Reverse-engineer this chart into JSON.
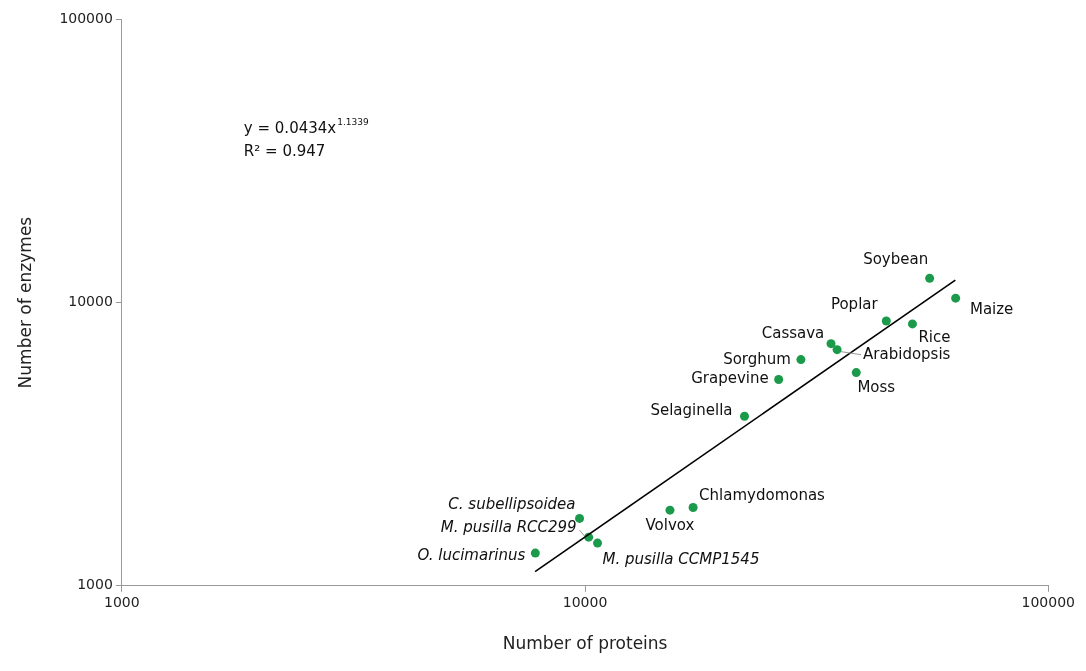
{
  "chart_data": {
    "type": "scatter",
    "xlabel": "Number of proteins",
    "ylabel": "Number of enzymes",
    "log": "xy",
    "grid": false,
    "legend": false,
    "marker": "circle",
    "xlim": [
      1000,
      100000
    ],
    "xticks": [
      1000,
      10000,
      100000
    ],
    "ylim": [
      1000,
      100000
    ],
    "yticks": [
      1000,
      10000,
      100000
    ],
    "series": [
      {
        "color": "#1a9a4a",
        "x": [
          55450,
          63100,
          44700,
          50900,
          33960,
          35000,
          29240,
          26180,
          38500,
          22090,
          17110,
          15250,
          9730,
          10180,
          10640,
          7810
        ],
        "values": [
          12180,
          10370,
          8610,
          8410,
          7160,
          6820,
          6290,
          5350,
          5660,
          3970,
          1890,
          1850,
          1730,
          1485,
          1415,
          1305
        ]
      },
      {
        "type": "line",
        "color": "#000000",
        "line_style": "solid",
        "marker": "none",
        "x": [
          7800,
          63000
        ],
        "values": [
          1122,
          12000
        ]
      }
    ],
    "annotations": [
      {
        "text": "Soybean",
        "x": 55450,
        "y": 12180
      },
      {
        "text": "Maize",
        "x": 63100,
        "y": 10370
      },
      {
        "text": "Poplar",
        "x": 44700,
        "y": 8610
      },
      {
        "text": "Rice",
        "x": 50900,
        "y": 8410
      },
      {
        "text": "Cassava",
        "x": 33960,
        "y": 7160
      },
      {
        "text": "Arabidopsis",
        "x": 35000,
        "y": 6820
      },
      {
        "text": "Sorghum",
        "x": 29240,
        "y": 6290
      },
      {
        "text": "Grapevine",
        "x": 26180,
        "y": 5350
      },
      {
        "text": "Moss",
        "x": 38500,
        "y": 5660
      },
      {
        "text": "Selaginella",
        "x": 22090,
        "y": 3970
      },
      {
        "text": "Chlamydomonas",
        "x": 17110,
        "y": 1890
      },
      {
        "text": "Volvox",
        "x": 15250,
        "y": 1850
      },
      {
        "text": "C. subellipsoidea",
        "x": 9730,
        "y": 1730
      },
      {
        "text": "M. pusilla RCC299",
        "x": 10180,
        "y": 1485
      },
      {
        "text": "M. pusilla CCMP1545",
        "x": 10640,
        "y": 1415
      },
      {
        "text": "O. lucimarinus",
        "x": 7810,
        "y": 1305
      },
      "y = 0.0434x$^{1.1339}$",
      "R² = 0.947"
    ]
  }
}
